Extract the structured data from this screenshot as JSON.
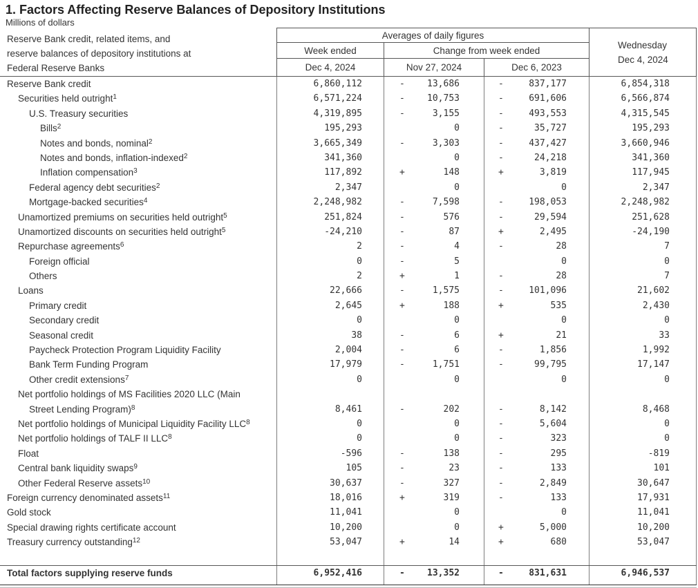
{
  "title": "1. Factors Affecting Reserve Balances of Depository Institutions",
  "subtitle": "Millions of dollars",
  "colors": {
    "text": "#333333",
    "rule": "#555555",
    "background": "#ffffff"
  },
  "header": {
    "stub_lines": [
      "Reserve Bank credit, related items, and",
      "reserve balances of depository institutions at",
      "Federal Reserve Banks"
    ],
    "averages_label": "Averages of daily figures",
    "week_ended_label": "Week ended",
    "week_ended_date": "Dec 4, 2024",
    "change_label": "Change from week ended",
    "change_dates": [
      "Nov 27, 2024",
      "Dec 6, 2023"
    ],
    "wednesday_label": "Wednesday",
    "wednesday_date": "Dec 4, 2024"
  },
  "rows": [
    {
      "label": "Reserve Bank credit",
      "indent": 0,
      "week": "6,860,112",
      "s1": "-",
      "c1": "13,686",
      "s2": "-",
      "c2": "837,177",
      "wed": "6,854,318"
    },
    {
      "label": "Securities held outright",
      "sup": "1",
      "indent": 1,
      "week": "6,571,224",
      "s1": "-",
      "c1": "10,753",
      "s2": "-",
      "c2": "691,606",
      "wed": "6,566,874"
    },
    {
      "label": "U.S. Treasury securities",
      "indent": 2,
      "week": "4,319,895",
      "s1": "-",
      "c1": "3,155",
      "s2": "-",
      "c2": "493,553",
      "wed": "4,315,545"
    },
    {
      "label": "Bills",
      "sup": "2",
      "indent": 3,
      "week": "195,293",
      "s1": "",
      "c1": "0",
      "s2": "-",
      "c2": "35,727",
      "wed": "195,293"
    },
    {
      "label": "Notes and bonds, nominal",
      "sup": "2",
      "indent": 3,
      "week": "3,665,349",
      "s1": "-",
      "c1": "3,303",
      "s2": "-",
      "c2": "437,427",
      "wed": "3,660,946"
    },
    {
      "label": "Notes and bonds, inflation-indexed",
      "sup": "2",
      "indent": 3,
      "week": "341,360",
      "s1": "",
      "c1": "0",
      "s2": "-",
      "c2": "24,218",
      "wed": "341,360"
    },
    {
      "label": "Inflation compensation",
      "sup": "3",
      "indent": 3,
      "week": "117,892",
      "s1": "+",
      "c1": "148",
      "s2": "+",
      "c2": "3,819",
      "wed": "117,945"
    },
    {
      "label": "Federal agency debt securities",
      "sup": "2",
      "indent": 2,
      "week": "2,347",
      "s1": "",
      "c1": "0",
      "s2": "",
      "c2": "0",
      "wed": "2,347"
    },
    {
      "label": "Mortgage-backed securities",
      "sup": "4",
      "indent": 2,
      "week": "2,248,982",
      "s1": "-",
      "c1": "7,598",
      "s2": "-",
      "c2": "198,053",
      "wed": "2,248,982"
    },
    {
      "label": "Unamortized premiums on securities held outright",
      "sup": "5",
      "indent": 1,
      "week": "251,824",
      "s1": "-",
      "c1": "576",
      "s2": "-",
      "c2": "29,594",
      "wed": "251,628"
    },
    {
      "label": "Unamortized discounts on securities held outright",
      "sup": "5",
      "indent": 1,
      "week": "-24,210",
      "s1": "-",
      "c1": "87",
      "s2": "+",
      "c2": "2,495",
      "wed": "-24,190"
    },
    {
      "label": "Repurchase agreements",
      "sup": "6",
      "indent": 1,
      "week": "2",
      "s1": "-",
      "c1": "4",
      "s2": "-",
      "c2": "28",
      "wed": "7"
    },
    {
      "label": "Foreign official",
      "indent": 2,
      "week": "0",
      "s1": "-",
      "c1": "5",
      "s2": "",
      "c2": "0",
      "wed": "0"
    },
    {
      "label": "Others",
      "indent": 2,
      "week": "2",
      "s1": "+",
      "c1": "1",
      "s2": "-",
      "c2": "28",
      "wed": "7"
    },
    {
      "label": "Loans",
      "indent": 1,
      "week": "22,666",
      "s1": "-",
      "c1": "1,575",
      "s2": "-",
      "c2": "101,096",
      "wed": "21,602"
    },
    {
      "label": "Primary credit",
      "indent": 2,
      "week": "2,645",
      "s1": "+",
      "c1": "188",
      "s2": "+",
      "c2": "535",
      "wed": "2,430"
    },
    {
      "label": "Secondary credit",
      "indent": 2,
      "week": "0",
      "s1": "",
      "c1": "0",
      "s2": "",
      "c2": "0",
      "wed": "0"
    },
    {
      "label": "Seasonal credit",
      "indent": 2,
      "week": "38",
      "s1": "-",
      "c1": "6",
      "s2": "+",
      "c2": "21",
      "wed": "33"
    },
    {
      "label": "Paycheck Protection Program Liquidity Facility",
      "indent": 2,
      "week": "2,004",
      "s1": "-",
      "c1": "6",
      "s2": "-",
      "c2": "1,856",
      "wed": "1,992"
    },
    {
      "label": "Bank Term Funding Program",
      "indent": 2,
      "week": "17,979",
      "s1": "-",
      "c1": "1,751",
      "s2": "-",
      "c2": "99,795",
      "wed": "17,147"
    },
    {
      "label": "Other credit extensions",
      "sup": "7",
      "indent": 2,
      "week": "0",
      "s1": "",
      "c1": "0",
      "s2": "",
      "c2": "0",
      "wed": "0"
    },
    {
      "label": "Net portfolio holdings of MS Facilities 2020 LLC (Main",
      "indent": 1,
      "label2": "Street Lending Program)",
      "sup2": "8",
      "indent2": 2,
      "week": "8,461",
      "s1": "-",
      "c1": "202",
      "s2": "-",
      "c2": "8,142",
      "wed": "8,468"
    },
    {
      "label": "Net portfolio holdings of Municipal Liquidity Facility LLC",
      "sup": "8",
      "indent": 1,
      "week": "0",
      "s1": "",
      "c1": "0",
      "s2": "-",
      "c2": "5,604",
      "wed": "0"
    },
    {
      "label": "Net portfolio holdings of TALF II LLC",
      "sup": "8",
      "indent": 1,
      "week": "0",
      "s1": "",
      "c1": "0",
      "s2": "-",
      "c2": "323",
      "wed": "0"
    },
    {
      "label": "Float",
      "indent": 1,
      "week": "-596",
      "s1": "-",
      "c1": "138",
      "s2": "-",
      "c2": "295",
      "wed": "-819"
    },
    {
      "label": "Central bank liquidity swaps",
      "sup": "9",
      "indent": 1,
      "week": "105",
      "s1": "-",
      "c1": "23",
      "s2": "-",
      "c2": "133",
      "wed": "101"
    },
    {
      "label": "Other Federal Reserve assets",
      "sup": "10",
      "indent": 1,
      "week": "30,637",
      "s1": "-",
      "c1": "327",
      "s2": "-",
      "c2": "2,849",
      "wed": "30,647"
    },
    {
      "label": "Foreign currency denominated assets",
      "sup": "11",
      "indent": 0,
      "week": "18,016",
      "s1": "+",
      "c1": "319",
      "s2": "-",
      "c2": "133",
      "wed": "17,931"
    },
    {
      "label": "Gold stock",
      "indent": 0,
      "week": "11,041",
      "s1": "",
      "c1": "0",
      "s2": "",
      "c2": "0",
      "wed": "11,041"
    },
    {
      "label": "Special drawing rights certificate account",
      "indent": 0,
      "week": "10,200",
      "s1": "",
      "c1": "0",
      "s2": "+",
      "c2": "5,000",
      "wed": "10,200"
    },
    {
      "label": "Treasury currency outstanding",
      "sup": "12",
      "indent": 0,
      "week": "53,047",
      "s1": "+",
      "c1": "14",
      "s2": "+",
      "c2": "680",
      "wed": "53,047"
    },
    {
      "spacer": true
    },
    {
      "total": true,
      "label": "Total factors supplying reserve funds",
      "indent": 0,
      "week": "6,952,416",
      "s1": "-",
      "c1": "13,352",
      "s2": "-",
      "c2": "831,631",
      "wed": "6,946,537"
    }
  ]
}
